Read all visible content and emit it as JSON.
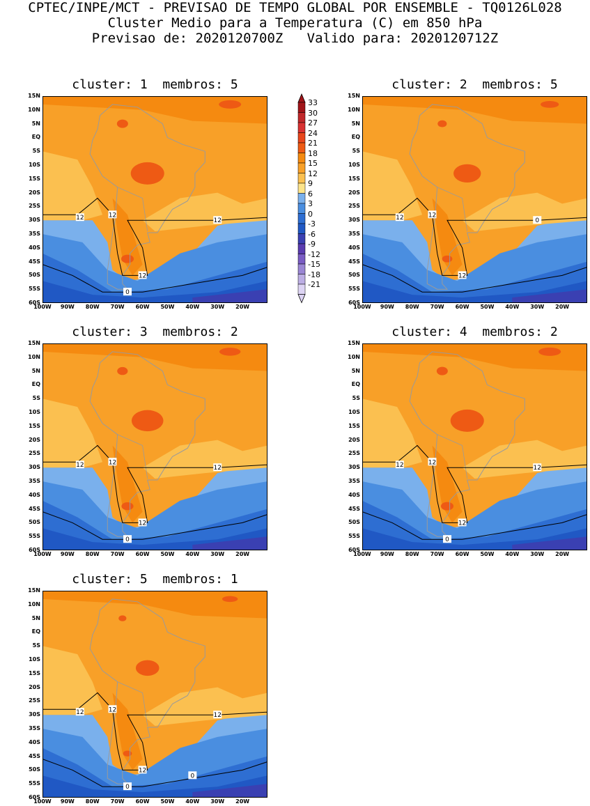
{
  "header": {
    "line1": "CPTEC/INPE/MCT - PREVISAO DE TEMPO GLOBAL POR ENSEMBLE - TQ0126L028",
    "line2": "Cluster Medio para a Temperatura (C) em 850 hPa",
    "line3": "Previsao de: 2020120700Z   Valido para: 2020120712Z"
  },
  "axes": {
    "lat_ticks": [
      "15N",
      "10N",
      "5N",
      "EQ",
      "5S",
      "10S",
      "15S",
      "20S",
      "25S",
      "30S",
      "35S",
      "40S",
      "45S",
      "50S",
      "55S",
      "60S"
    ],
    "lon_ticks": [
      "100W",
      "90W",
      "80W",
      "70W",
      "60W",
      "50W",
      "40W",
      "30W",
      "20W"
    ],
    "lon_range": [
      -100,
      -10
    ],
    "lat_range": [
      -60,
      15
    ]
  },
  "colorbar": {
    "labels": [
      "33",
      "30",
      "27",
      "24",
      "21",
      "18",
      "15",
      "12",
      "9",
      "6",
      "3",
      "0",
      "-3",
      "-6",
      "-9",
      "-12",
      "-15",
      "-18",
      "-21"
    ],
    "colors": {
      "33": "#a01418",
      "30": "#c0282a",
      "27": "#d83232",
      "24": "#e8461c",
      "21": "#ee5a14",
      "18": "#f58a10",
      "15": "#f8a028",
      "12": "#fbc050",
      "9": "#fde48a",
      "6": "#7ab0ec",
      "3": "#4a8ee0",
      "0": "#2e6ed2",
      "-3": "#2058c4",
      "-6": "#3a40b2",
      "-9": "#5a3cb0",
      "-12": "#7a5cc4",
      "-15": "#9a86d4",
      "-18": "#bcaee4",
      "-21": "#ddd4f4"
    }
  },
  "clusters": [
    {
      "title": "cluster: 1  membros: 5",
      "contour_labels": [
        "12",
        "12",
        "12",
        "12",
        "0"
      ]
    },
    {
      "title": "cluster: 2  membros: 5",
      "contour_labels": [
        "12",
        "12",
        "12",
        "0"
      ]
    },
    {
      "title": "cluster: 3  membros: 2",
      "contour_labels": [
        "12",
        "12",
        "12",
        "12",
        "0"
      ]
    },
    {
      "title": "cluster: 4  membros: 2",
      "contour_labels": [
        "12",
        "12",
        "12",
        "12",
        "0"
      ]
    },
    {
      "title": "cluster: 5  membros: 1",
      "contour_labels": [
        "12",
        "12",
        "12",
        "12",
        "0",
        "0"
      ]
    }
  ]
}
